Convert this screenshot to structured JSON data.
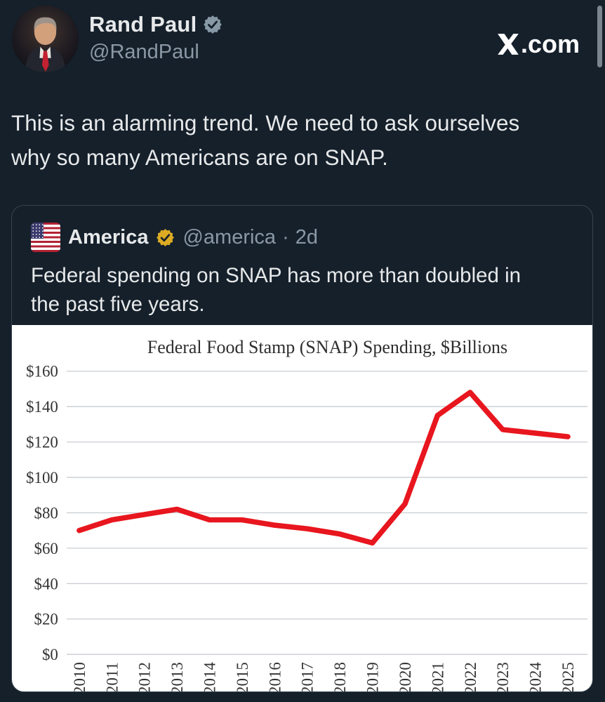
{
  "header": {
    "display_name": "Rand Paul",
    "handle": "@RandPaul",
    "watermark_suffix": ".com",
    "badge_style": "gray-verified"
  },
  "tweet": {
    "lines": [
      "This is an alarming trend. We need to ask ourselves",
      "why so many Americans are on SNAP."
    ]
  },
  "quote": {
    "display_name": "America",
    "handle": "@america",
    "separator": "·",
    "timestamp": "2d",
    "badge_style": "gold-verified",
    "lines": [
      "Federal spending on SNAP has more than doubled in",
      "the past five years."
    ]
  },
  "chart_data": {
    "type": "line",
    "title": "Federal Food Stamp (SNAP) Spending, $Billions",
    "x": [
      2010,
      2011,
      2012,
      2013,
      2014,
      2015,
      2016,
      2017,
      2018,
      2019,
      2020,
      2021,
      2022,
      2023,
      2024,
      2025
    ],
    "series": [
      {
        "name": "SNAP spending ($B)",
        "values": [
          70,
          76,
          79,
          82,
          76,
          76,
          73,
          71,
          68,
          63,
          85,
          135,
          148,
          127,
          125,
          123
        ]
      }
    ],
    "xlabel": "",
    "ylabel": "",
    "ylim": [
      0,
      160
    ],
    "ytick_step": 20,
    "ytick_prefix": "$",
    "grid": true,
    "legend_position": "none",
    "line_color": "#e8161e",
    "background": "#ffffff"
  },
  "colors": {
    "page_background": "#15202b",
    "primary_text": "#e7e9ea",
    "secondary_text": "#8b98a5",
    "card_border": "#38444d",
    "gray_badge": "#8899a6",
    "gold_badge": "#dcab23",
    "chart_line_red": "#e8161e",
    "scrollbar": "#7b858f"
  },
  "icons": {
    "watermark_logo": "x-logo",
    "header_badge": "verified-seal-gray",
    "quote_badge": "verified-seal-gold",
    "quote_avatar": "us-flag"
  }
}
